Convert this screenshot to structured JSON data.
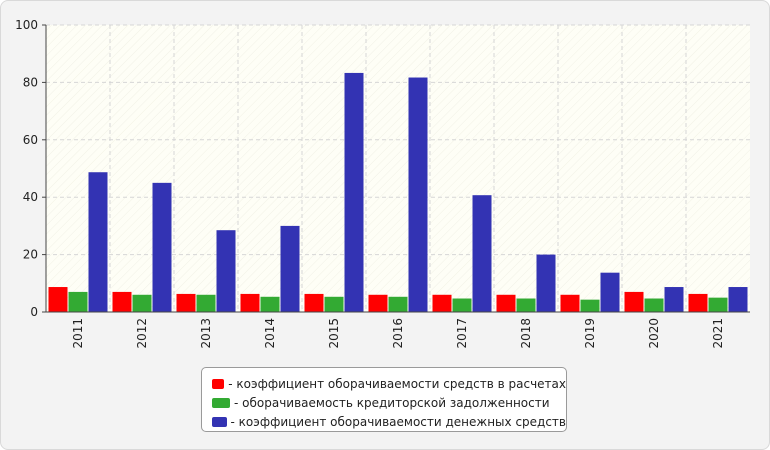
{
  "chart_data": {
    "type": "bar",
    "title": "",
    "xlabel": "",
    "ylabel": "",
    "ylim": [
      0,
      100
    ],
    "yticks": [
      0,
      20,
      40,
      60,
      80,
      100
    ],
    "grid": true,
    "legend_position": "bottom",
    "categories": [
      "2011",
      "2012",
      "2013",
      "2014",
      "2015",
      "2016",
      "2017",
      "2018",
      "2019",
      "2020",
      "2021"
    ],
    "series": [
      {
        "name": "- коэффициент оборачиваемости средств в расчетах",
        "color": "#ff0000",
        "values": [
          8.7,
          7.0,
          6.3,
          6.3,
          6.3,
          6.0,
          6.0,
          6.0,
          6.0,
          7.0,
          6.3
        ]
      },
      {
        "name": "- оборачиваемость кредиторской задолженности",
        "color": "#33aa33",
        "values": [
          7.0,
          6.0,
          6.0,
          5.3,
          5.3,
          5.3,
          4.7,
          4.7,
          4.3,
          4.7,
          5.0
        ]
      },
      {
        "name": "- коэффициент оборачиваемости денежных средств",
        "color": "#3333b3",
        "values": [
          48.7,
          45.0,
          28.5,
          30.0,
          83.3,
          81.7,
          40.7,
          20.0,
          13.7,
          8.7,
          8.7
        ]
      }
    ]
  }
}
